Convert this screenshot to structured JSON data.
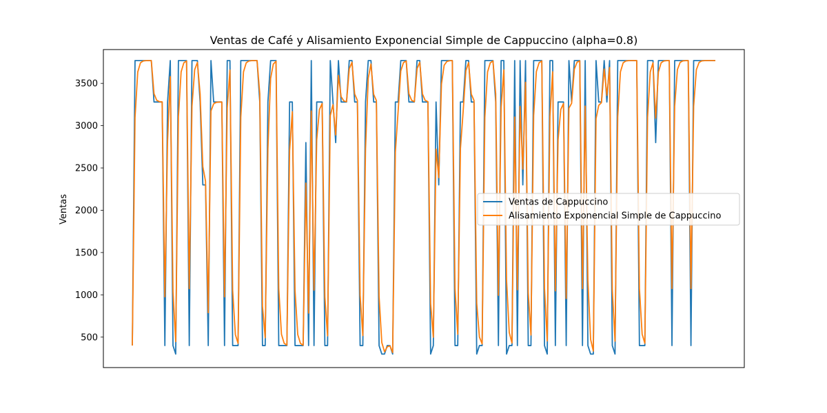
{
  "chart_data": {
    "type": "line",
    "title": "Ventas de Café y Alisamiento Exponencial Simple de Cappuccino (alpha=0.8)",
    "xlabel": "",
    "ylabel": "Ventas",
    "ylim": [
      140,
      3900
    ],
    "yticks": [
      500,
      1000,
      1500,
      2000,
      2500,
      3000,
      3500
    ],
    "grid": false,
    "legend_position": "center-right",
    "series": [
      {
        "name": "Ventas de Cappuccino",
        "color": "#1f77b4",
        "values": [
          400,
          3770,
          3770,
          3770,
          3770,
          3770,
          3770,
          3770,
          3280,
          3280,
          3280,
          3280,
          400,
          3280,
          3770,
          400,
          300,
          3770,
          3770,
          3770,
          3770,
          400,
          3770,
          3770,
          3770,
          3280,
          2300,
          2300,
          400,
          3770,
          3280,
          3280,
          3280,
          3280,
          400,
          3770,
          3770,
          400,
          400,
          400,
          3770,
          3770,
          3770,
          3770,
          3770,
          3770,
          3770,
          3280,
          400,
          400,
          3280,
          3770,
          3770,
          3770,
          400,
          400,
          400,
          400,
          3280,
          3280,
          400,
          400,
          400,
          400,
          2800,
          400,
          3770,
          400,
          3280,
          3280,
          3280,
          400,
          400,
          3770,
          3280,
          2800,
          3770,
          3280,
          3280,
          3280,
          3770,
          3770,
          3280,
          3280,
          400,
          400,
          3280,
          3770,
          3770,
          3280,
          3280,
          400,
          300,
          300,
          400,
          400,
          300,
          3280,
          3280,
          3770,
          3770,
          3770,
          3280,
          3280,
          3280,
          3770,
          3770,
          3280,
          3280,
          3280,
          300,
          400,
          3280,
          2300,
          3770,
          3770,
          3770,
          3770,
          3770,
          400,
          400,
          3280,
          3280,
          3770,
          3770,
          3280,
          3280,
          300,
          400,
          400,
          3770,
          3770,
          3770,
          3770,
          3280,
          400,
          3770,
          3770,
          300,
          400,
          400,
          3770,
          400,
          3770,
          2300,
          3770,
          400,
          400,
          3770,
          3770,
          3770,
          3770,
          400,
          300,
          3770,
          3770,
          400,
          3280,
          3280,
          3280,
          400,
          3770,
          3280,
          3770,
          3770,
          3770,
          400,
          3770,
          400,
          300,
          300,
          3770,
          3280,
          3280,
          3770,
          3280,
          3770,
          400,
          300,
          3770,
          3770,
          3770,
          3770,
          3770,
          3770,
          3770,
          3770,
          400,
          400,
          400,
          3770,
          3770,
          3770,
          2800,
          3770,
          3770,
          3770,
          3770,
          3770,
          400,
          3770,
          3770,
          3770,
          3770,
          3770,
          3770,
          400,
          3770,
          3770,
          3770,
          3770,
          3770,
          3770,
          3770,
          3770,
          3770
        ]
      },
      {
        "name": "Alisamiento Exponencial Simple de Cappuccino",
        "color": "#ff7f0e",
        "values": [
          400,
          3096,
          3635,
          3743,
          3765,
          3769,
          3770,
          3770,
          3378,
          3300,
          3284,
          3281,
          976,
          2819,
          3580,
          1036,
          447,
          3105,
          3637,
          3743,
          3765,
          1073,
          3231,
          3662,
          3748,
          3374,
          2515,
          2343,
          789,
          3174,
          3259,
          3276,
          3279,
          3280,
          976,
          3211,
          3658,
          1052,
          530,
          426,
          3101,
          3636,
          3743,
          3765,
          3769,
          3770,
          3770,
          3378,
          866,
          493,
          2723,
          3561,
          3728,
          3762,
          1072,
          534,
          427,
          405,
          2705,
          3165,
          1053,
          531,
          426,
          405,
          2321,
          784,
          3173,
          1055,
          2835,
          3191,
          3262,
          976,
          515,
          3119,
          3248,
          2890,
          3594,
          3343,
          3293,
          3283,
          3672,
          3750,
          3374,
          3299,
          996,
          519,
          2728,
          3562,
          3729,
          3370,
          3298,
          980,
          436,
          327,
          385,
          397,
          319,
          2688,
          3162,
          3648,
          3746,
          3765,
          3377,
          3300,
          3284,
          3673,
          3750,
          3374,
          3299,
          3284,
          897,
          499,
          2724,
          2385,
          3493,
          3715,
          3759,
          3768,
          3770,
          1074,
          535,
          2731,
          3170,
          3650,
          3746,
          3373,
          3299,
          900,
          500,
          420,
          3100,
          3636,
          3743,
          3765,
          3377,
          995,
          3215,
          3659,
          1172,
          554,
          431,
          3102,
          1060,
          3228,
          2486,
          3513,
          1023,
          525,
          3121,
          3640,
          3744,
          3765,
          1073,
          455,
          3107,
          3637,
          1047,
          2833,
          3191,
          3262,
          957,
          3207,
          3265,
          3669,
          3750,
          3766,
          1073,
          3231,
          1166,
          473,
          335,
          3083,
          3241,
          3272,
          3670,
          3358,
          3688,
          1058,
          452,
          3106,
          3637,
          3743,
          3765,
          3769,
          3770,
          3770,
          3770,
          1074,
          535,
          427,
          3101,
          3636,
          3743,
          3089,
          3634,
          3743,
          3765,
          3769,
          3770,
          1074,
          3231,
          3662,
          3748,
          3766,
          3769,
          3770,
          1074,
          3231,
          3662,
          3748,
          3766,
          3769,
          3770,
          3770,
          3770,
          3770
        ]
      }
    ]
  }
}
